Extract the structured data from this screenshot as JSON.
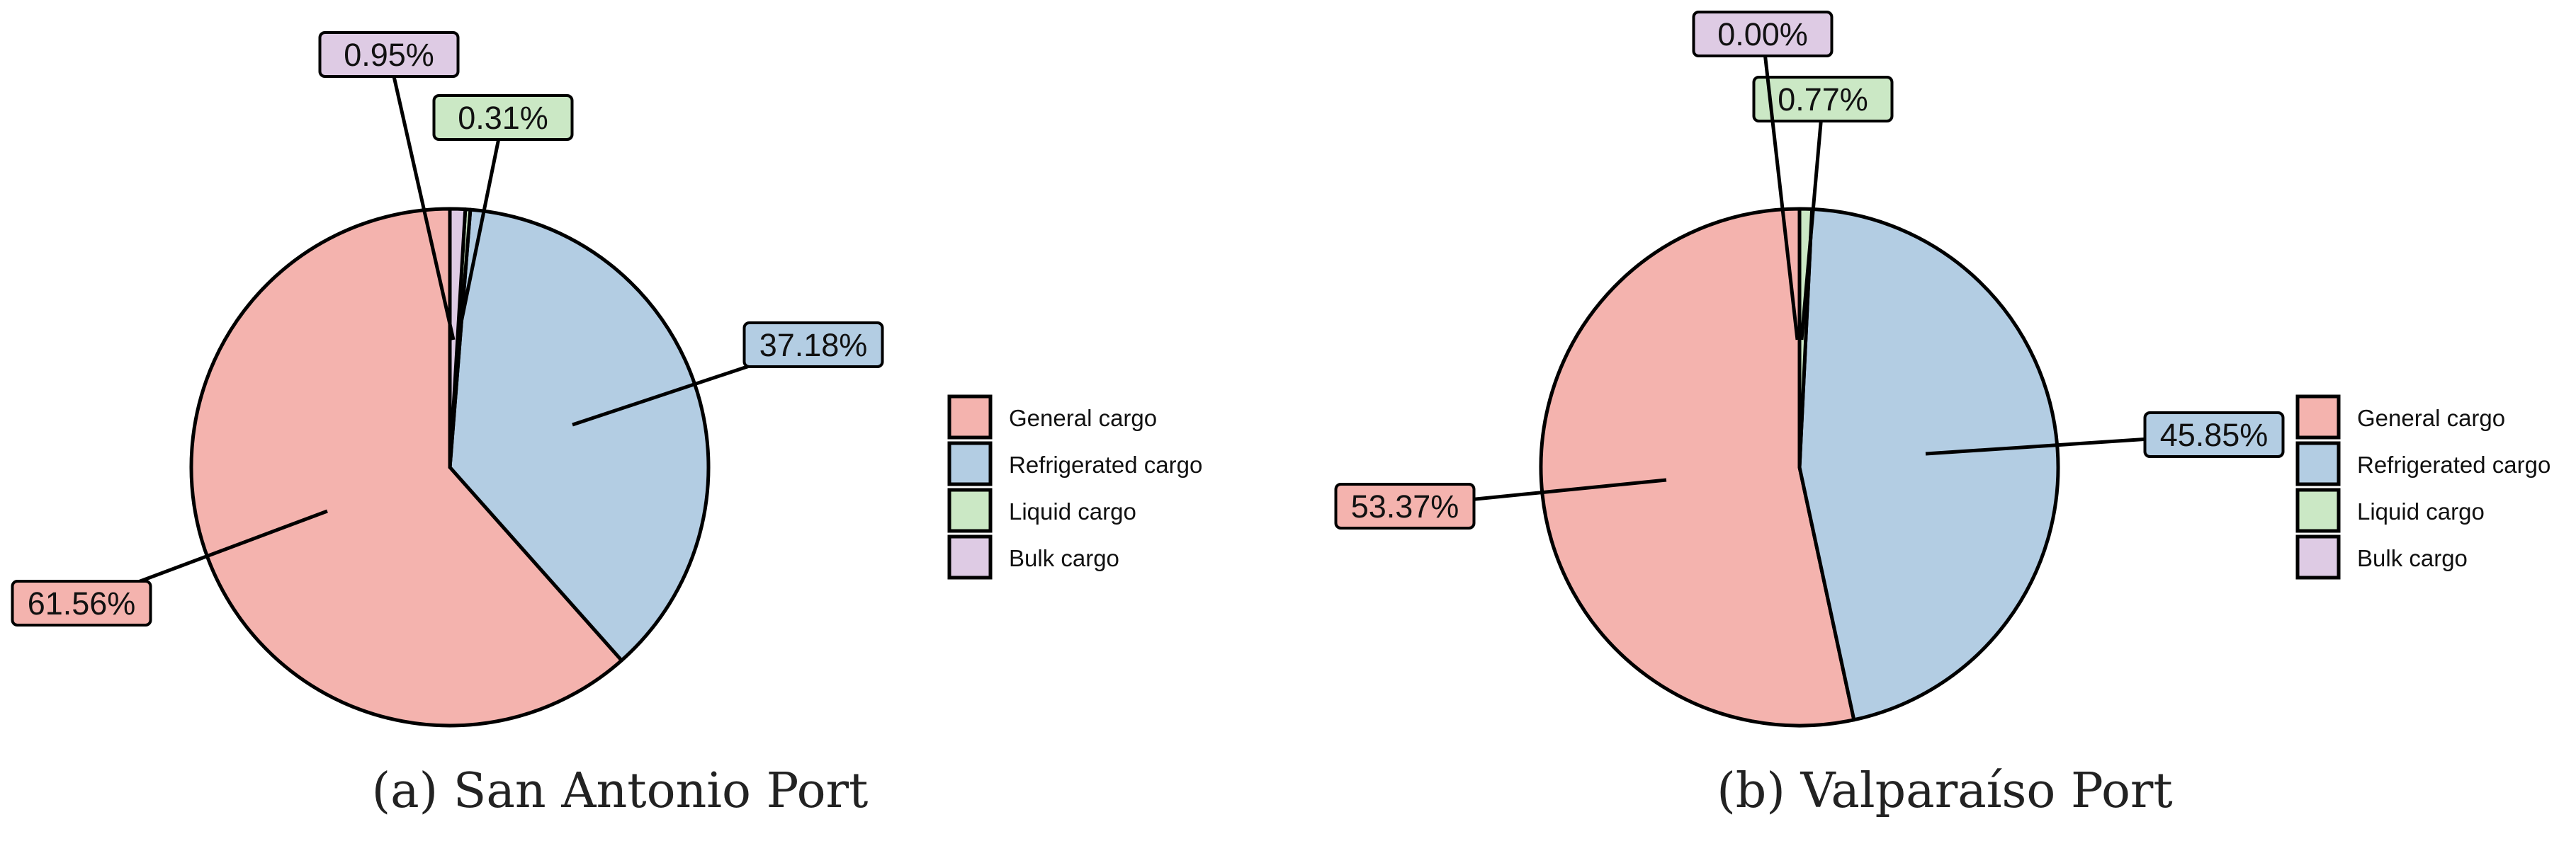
{
  "colors": {
    "General cargo": "#f4b3ae",
    "Refrigerated cargo": "#b3cde3",
    "Liquid cargo": "#cbe8c5",
    "Bulk cargo": "#decbe4"
  },
  "chart_data": [
    {
      "type": "pie",
      "caption": "(a) San Antonio Port",
      "categories": [
        "General cargo",
        "Refrigerated cargo",
        "Liquid cargo",
        "Bulk cargo"
      ],
      "values": [
        61.56,
        37.18,
        0.31,
        0.95
      ],
      "labels": [
        "61.56%",
        "37.18%",
        "0.31%",
        "0.95%"
      ],
      "legend": [
        "General cargo",
        "Refrigerated cargo",
        "Liquid cargo",
        "Bulk cargo"
      ]
    },
    {
      "type": "pie",
      "caption": "(b) Valparaíso Port",
      "categories": [
        "General cargo",
        "Refrigerated cargo",
        "Liquid cargo",
        "Bulk cargo"
      ],
      "values": [
        53.37,
        45.85,
        0.77,
        0.0
      ],
      "labels": [
        "53.37%",
        "45.85%",
        "0.77%",
        "0.00%"
      ],
      "legend": [
        "General cargo",
        "Refrigerated cargo",
        "Liquid cargo",
        "Bulk cargo"
      ]
    }
  ]
}
